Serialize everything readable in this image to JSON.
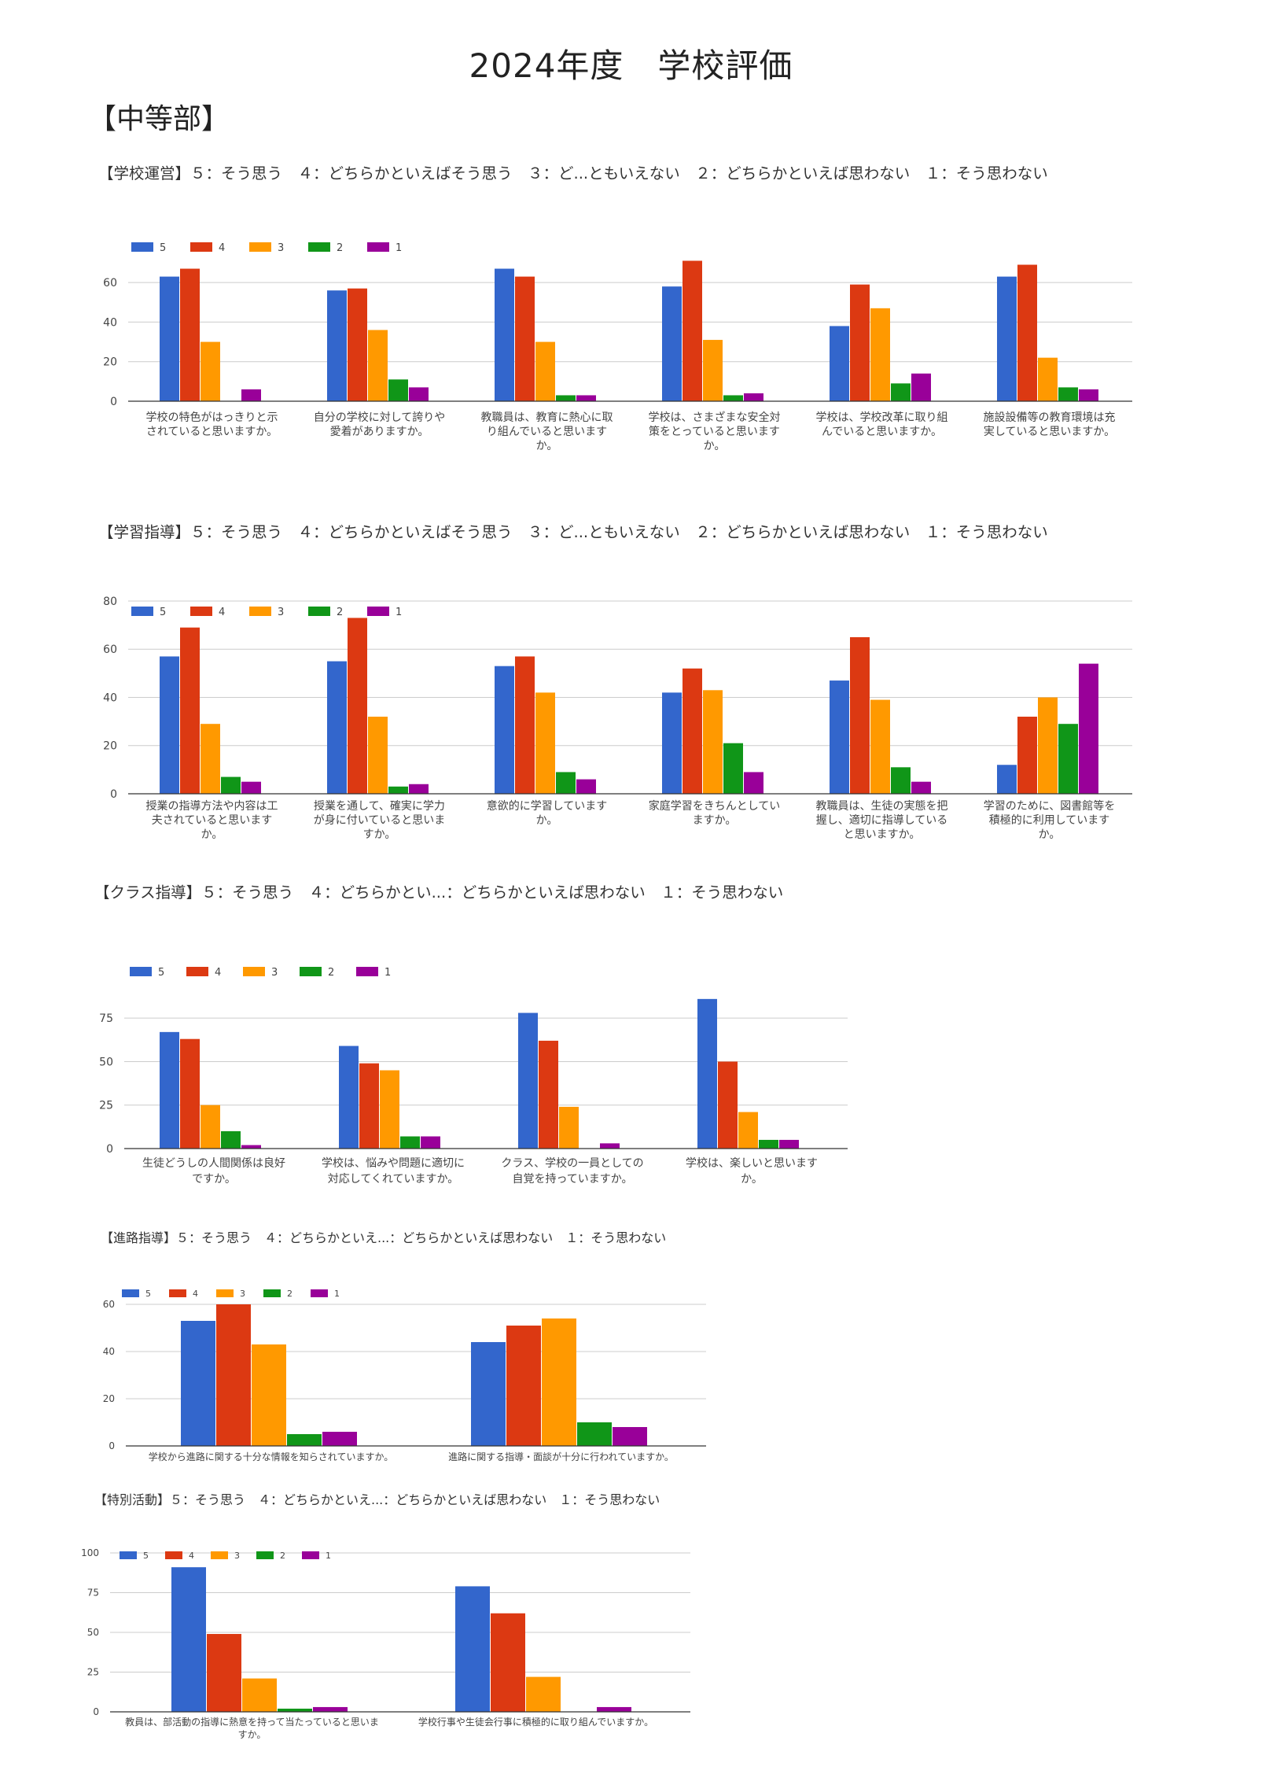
{
  "page": {
    "title": "2024年度　学校評価",
    "section": "【中等部】"
  },
  "legend_labels": [
    "5",
    "4",
    "3",
    "2",
    "1"
  ],
  "colors": {
    "s5": "#3366cc",
    "s4": "#dc3912",
    "s3": "#ff9900",
    "s2": "#109618",
    "s1": "#990099",
    "grid": "#cccccc",
    "axis": "#333333",
    "text": "#444444"
  },
  "chart_data": [
    {
      "type": "bar",
      "title": "【学校運営】５：そう思う　４：どちらかといえばそう思う　３：ど...ともいえない　２：どちらかといえば思わない　１：そう思わない",
      "ylim": [
        0,
        70
      ],
      "yticks": [
        0,
        20,
        40,
        60
      ],
      "categories": [
        [
          "学校の特色がはっきりと示",
          "されていると思いますか。"
        ],
        [
          "自分の学校に対して誇りや",
          "愛着がありますか。"
        ],
        [
          "教職員は、教育に熱心に取",
          "り組んでいると思います",
          "か。"
        ],
        [
          "学校は、さまざまな安全対",
          "策をとっていると思います",
          "か。"
        ],
        [
          "学校は、学校改革に取り組",
          "んでいると思いますか。"
        ],
        [
          "施設設備等の教育環境は充",
          "実していると思いますか。"
        ]
      ],
      "series": [
        {
          "name": "5",
          "values": [
            63,
            56,
            67,
            58,
            38,
            63
          ]
        },
        {
          "name": "4",
          "values": [
            67,
            57,
            63,
            71,
            59,
            69
          ]
        },
        {
          "name": "3",
          "values": [
            30,
            36,
            30,
            31,
            47,
            22
          ]
        },
        {
          "name": "2",
          "values": [
            0,
            11,
            3,
            3,
            9,
            7
          ]
        },
        {
          "name": "1",
          "values": [
            6,
            7,
            3,
            4,
            14,
            6
          ]
        }
      ]
    },
    {
      "type": "bar",
      "title": "【学習指導】５：そう思う　４：どちらかといえばそう思う　３：ど...ともいえない　２：どちらかといえば思わない　１：そう思わない",
      "ylim": [
        0,
        80
      ],
      "yticks": [
        0,
        20,
        40,
        60,
        80
      ],
      "categories": [
        [
          "授業の指導方法や内容は工",
          "夫されていると思います",
          "か。"
        ],
        [
          "授業を通して、確実に学力",
          "が身に付いていると思いま",
          "すか。"
        ],
        [
          "意欲的に学習しています",
          "か。"
        ],
        [
          "家庭学習をきちんとしてい",
          "ますか。"
        ],
        [
          "教職員は、生徒の実態を把",
          "握し、適切に指導している",
          "と思いますか。"
        ],
        [
          "学習のために、図書館等を",
          "積極的に利用しています",
          "か。"
        ]
      ],
      "series": [
        {
          "name": "5",
          "values": [
            57,
            55,
            53,
            42,
            47,
            12
          ]
        },
        {
          "name": "4",
          "values": [
            69,
            73,
            57,
            52,
            65,
            32
          ]
        },
        {
          "name": "3",
          "values": [
            29,
            32,
            42,
            43,
            39,
            40
          ]
        },
        {
          "name": "2",
          "values": [
            7,
            3,
            9,
            21,
            11,
            29
          ]
        },
        {
          "name": "1",
          "values": [
            5,
            4,
            6,
            9,
            5,
            54
          ]
        }
      ]
    },
    {
      "type": "bar",
      "title": "【クラス指導】５：そう思う　４：どちらかとい...：どちらかといえば思わない　１：そう思わない",
      "ylim": [
        0,
        90
      ],
      "yticks": [
        0,
        25,
        50,
        75
      ],
      "categories": [
        [
          "生徒どうしの人間関係は良好",
          "ですか。"
        ],
        [
          "学校は、悩みや問題に適切に",
          "対応してくれていますか。"
        ],
        [
          "クラス、学校の一員としての",
          "自覚を持っていますか。"
        ],
        [
          "学校は、楽しいと思います",
          "か。"
        ]
      ],
      "series": [
        {
          "name": "5",
          "values": [
            67,
            59,
            78,
            86
          ]
        },
        {
          "name": "4",
          "values": [
            63,
            49,
            62,
            50
          ]
        },
        {
          "name": "3",
          "values": [
            25,
            45,
            24,
            21
          ]
        },
        {
          "name": "2",
          "values": [
            10,
            7,
            0,
            5
          ]
        },
        {
          "name": "1",
          "values": [
            2,
            7,
            3,
            5
          ]
        }
      ]
    },
    {
      "type": "bar",
      "title": "【進路指導】５：そう思う　４：どちらかといえ...：どちらかといえば思わない　１：そう思わない",
      "ylim": [
        0,
        60
      ],
      "yticks": [
        0,
        20,
        40,
        60
      ],
      "categories": [
        [
          "学校から進路に関する十分な情報を知らされていますか。"
        ],
        [
          "進路に関する指導・面談が十分に行われていますか。"
        ]
      ],
      "series": [
        {
          "name": "5",
          "values": [
            53,
            44
          ]
        },
        {
          "name": "4",
          "values": [
            60,
            51
          ]
        },
        {
          "name": "3",
          "values": [
            43,
            54
          ]
        },
        {
          "name": "2",
          "values": [
            5,
            10
          ]
        },
        {
          "name": "1",
          "values": [
            6,
            8
          ]
        }
      ]
    },
    {
      "type": "bar",
      "title": "【特別活動】５：そう思う　４：どちらかといえ...：どちらかといえば思わない　１：そう思わない",
      "ylim": [
        0,
        100
      ],
      "yticks": [
        0,
        25,
        50,
        75,
        100
      ],
      "categories": [
        [
          "教員は、部活動の指導に熱意を持って当たっていると思いま",
          "すか。"
        ],
        [
          "学校行事や生徒会行事に積極的に取り組んでいますか。"
        ]
      ],
      "series": [
        {
          "name": "5",
          "values": [
            91,
            79
          ]
        },
        {
          "name": "4",
          "values": [
            49,
            62
          ]
        },
        {
          "name": "3",
          "values": [
            21,
            22
          ]
        },
        {
          "name": "2",
          "values": [
            2,
            0
          ]
        },
        {
          "name": "1",
          "values": [
            3,
            3
          ]
        }
      ]
    }
  ]
}
